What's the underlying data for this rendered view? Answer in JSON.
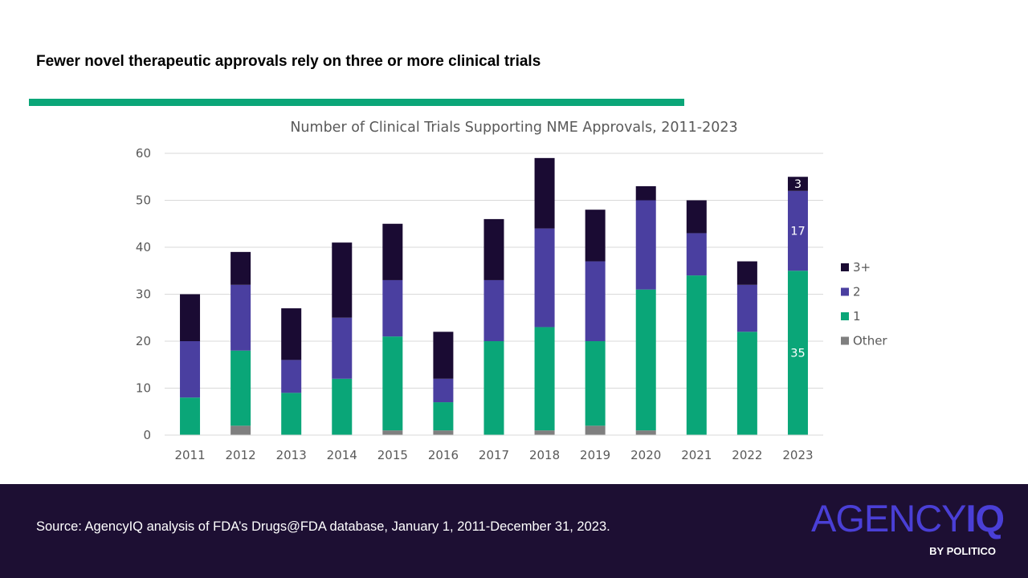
{
  "slide": {
    "headline": "Fewer novel therapeutic approvals rely on three or more clinical trials",
    "source": "Source: AgencyIQ analysis of FDA’s Drugs@FDA database, January 1, 2011-December 31, 2023.",
    "logo": {
      "wordmark_left": "AGENCY",
      "wordmark_right": "IQ",
      "byline": "BY POLITICO"
    },
    "colors": {
      "accent": "#0aa678",
      "footer_bg": "#1d0f33",
      "logo": "#4a3fd6"
    }
  },
  "chart_data": {
    "type": "bar",
    "stacked": true,
    "title": "Number of Clinical Trials Supporting NME Approvals, 2011-2023",
    "xlabel": "",
    "ylabel": "",
    "ylim": [
      0,
      60
    ],
    "yticks": [
      0,
      10,
      20,
      30,
      40,
      50,
      60
    ],
    "grid": true,
    "legend_position": "right",
    "categories": [
      "2011",
      "2012",
      "2013",
      "2014",
      "2015",
      "2016",
      "2017",
      "2018",
      "2019",
      "2020",
      "2021",
      "2022",
      "2023"
    ],
    "series": [
      {
        "name": "Other",
        "color": "#7f7f7f",
        "values": [
          0,
          2,
          0,
          0,
          1,
          1,
          0,
          1,
          2,
          1,
          0,
          0,
          0
        ]
      },
      {
        "name": "1",
        "color": "#0aa678",
        "values": [
          8,
          16,
          9,
          12,
          20,
          6,
          20,
          22,
          18,
          30,
          34,
          22,
          35
        ]
      },
      {
        "name": "2",
        "color": "#4a3fa0",
        "values": [
          12,
          14,
          7,
          13,
          12,
          5,
          13,
          21,
          17,
          19,
          9,
          10,
          17
        ]
      },
      {
        "name": "3+",
        "color": "#1a0b33",
        "values": [
          10,
          7,
          11,
          16,
          12,
          10,
          13,
          15,
          11,
          3,
          7,
          5,
          3
        ]
      }
    ],
    "legend_order": [
      "3+",
      "2",
      "1",
      "Other"
    ],
    "data_labels": [
      {
        "category": "2023",
        "series": "3+",
        "text": "3"
      },
      {
        "category": "2023",
        "series": "2",
        "text": "17"
      },
      {
        "category": "2023",
        "series": "1",
        "text": "35"
      }
    ]
  }
}
